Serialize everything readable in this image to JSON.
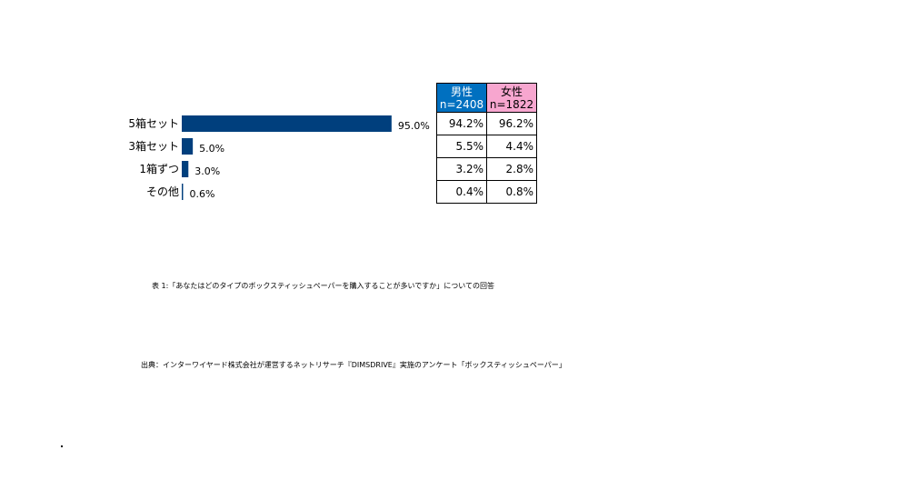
{
  "chart_data": {
    "type": "bar",
    "orientation": "horizontal",
    "categories": [
      "5箱セット",
      "3箱セット",
      "1箱ずつ",
      "その他"
    ],
    "values": [
      95.0,
      5.0,
      3.0,
      0.6
    ],
    "value_labels": [
      "95.0%",
      "5.0%",
      "3.0%",
      "0.6%"
    ],
    "bar_color": "#003f7d",
    "xlim": [
      0,
      100
    ],
    "grid": false,
    "title": "",
    "xlabel": "",
    "ylabel": ""
  },
  "table": {
    "headers": [
      {
        "label": "男性",
        "n": "n=2408",
        "color": "#0070c0"
      },
      {
        "label": "女性",
        "n": "n=1822",
        "color": "#f7a6cf"
      }
    ],
    "rows": [
      [
        "94.2%",
        "96.2%"
      ],
      [
        "5.5%",
        "4.4%"
      ],
      [
        "3.2%",
        "2.8%"
      ],
      [
        "0.4%",
        "0.8%"
      ]
    ]
  },
  "captions": {
    "table_caption": "表 1:「あなたはどのタイプのボックスティッシュペーパーを購入することが多いですか」についての回答",
    "source": "出典：インターワイヤード株式会社が運営するネットリサーチ『DIMSDRIVE』実施のアンケート「ボックスティッシュペーパー」"
  }
}
